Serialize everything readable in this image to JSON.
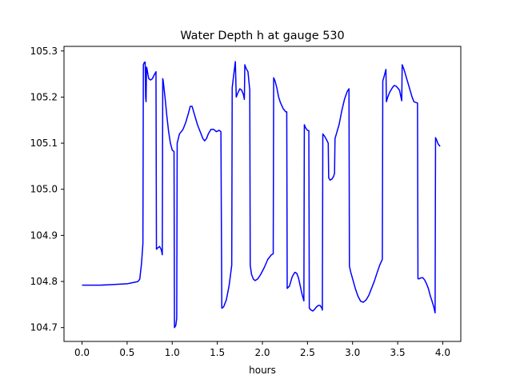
{
  "chart_data": {
    "type": "line",
    "title": "Water Depth h at gauge 530",
    "xlabel": "hours",
    "ylabel": "",
    "xlim": [
      -0.2,
      4.2
    ],
    "ylim": [
      104.67,
      105.31
    ],
    "xticks": [
      0.0,
      0.5,
      1.0,
      1.5,
      2.0,
      2.5,
      3.0,
      3.5,
      4.0
    ],
    "xtick_labels": [
      "0.0",
      "0.5",
      "1.0",
      "1.5",
      "2.0",
      "2.5",
      "3.0",
      "3.5",
      "4.0"
    ],
    "yticks": [
      104.7,
      104.8,
      104.9,
      105.0,
      105.1,
      105.2,
      105.3
    ],
    "ytick_labels": [
      "104.7",
      "104.8",
      "104.9",
      "105.0",
      "105.1",
      "105.2",
      "105.3"
    ],
    "grid": false,
    "legend": "none",
    "series": [
      {
        "color": "#0000ff",
        "points": [
          [
            0.0,
            104.792
          ],
          [
            0.1,
            104.792
          ],
          [
            0.2,
            104.792
          ],
          [
            0.3,
            104.793
          ],
          [
            0.4,
            104.794
          ],
          [
            0.5,
            104.795
          ],
          [
            0.55,
            104.797
          ],
          [
            0.6,
            104.799
          ],
          [
            0.62,
            104.8
          ],
          [
            0.64,
            104.805
          ],
          [
            0.66,
            104.84
          ],
          [
            0.675,
            104.882
          ],
          [
            0.68,
            105.27
          ],
          [
            0.69,
            105.275
          ],
          [
            0.7,
            105.276
          ],
          [
            0.705,
            105.2
          ],
          [
            0.71,
            105.19
          ],
          [
            0.715,
            105.265
          ],
          [
            0.72,
            105.262
          ],
          [
            0.73,
            105.25
          ],
          [
            0.74,
            105.24
          ],
          [
            0.76,
            105.237
          ],
          [
            0.78,
            105.24
          ],
          [
            0.8,
            105.248
          ],
          [
            0.82,
            105.255
          ],
          [
            0.825,
            104.87
          ],
          [
            0.84,
            104.873
          ],
          [
            0.86,
            104.876
          ],
          [
            0.88,
            104.868
          ],
          [
            0.89,
            104.858
          ],
          [
            0.895,
            105.24
          ],
          [
            0.9,
            105.235
          ],
          [
            0.92,
            105.2
          ],
          [
            0.94,
            105.16
          ],
          [
            0.96,
            105.125
          ],
          [
            0.98,
            105.1
          ],
          [
            1.0,
            105.085
          ],
          [
            1.02,
            105.082
          ],
          [
            1.025,
            104.7
          ],
          [
            1.04,
            104.705
          ],
          [
            1.05,
            104.72
          ],
          [
            1.055,
            105.1
          ],
          [
            1.08,
            105.12
          ],
          [
            1.1,
            105.125
          ],
          [
            1.12,
            105.13
          ],
          [
            1.15,
            105.145
          ],
          [
            1.18,
            105.165
          ],
          [
            1.2,
            105.18
          ],
          [
            1.22,
            105.18
          ],
          [
            1.25,
            105.16
          ],
          [
            1.28,
            105.14
          ],
          [
            1.31,
            105.125
          ],
          [
            1.34,
            105.11
          ],
          [
            1.36,
            105.105
          ],
          [
            1.38,
            105.11
          ],
          [
            1.4,
            105.12
          ],
          [
            1.43,
            105.13
          ],
          [
            1.46,
            105.13
          ],
          [
            1.49,
            105.125
          ],
          [
            1.52,
            105.128
          ],
          [
            1.54,
            105.125
          ],
          [
            1.55,
            104.742
          ],
          [
            1.57,
            104.745
          ],
          [
            1.6,
            104.76
          ],
          [
            1.63,
            104.79
          ],
          [
            1.66,
            104.835
          ],
          [
            1.665,
            105.22
          ],
          [
            1.68,
            105.245
          ],
          [
            1.7,
            105.277
          ],
          [
            1.71,
            105.2
          ],
          [
            1.73,
            105.21
          ],
          [
            1.75,
            105.218
          ],
          [
            1.77,
            105.215
          ],
          [
            1.79,
            105.205
          ],
          [
            1.8,
            105.195
          ],
          [
            1.805,
            105.27
          ],
          [
            1.82,
            105.262
          ],
          [
            1.84,
            105.255
          ],
          [
            1.86,
            105.215
          ],
          [
            1.865,
            104.835
          ],
          [
            1.88,
            104.815
          ],
          [
            1.9,
            104.805
          ],
          [
            1.92,
            104.802
          ],
          [
            1.95,
            104.806
          ],
          [
            1.98,
            104.815
          ],
          [
            2.02,
            104.83
          ],
          [
            2.06,
            104.848
          ],
          [
            2.1,
            104.858
          ],
          [
            2.12,
            104.86
          ],
          [
            2.125,
            105.242
          ],
          [
            2.14,
            105.235
          ],
          [
            2.16,
            105.22
          ],
          [
            2.18,
            105.2
          ],
          [
            2.2,
            105.188
          ],
          [
            2.23,
            105.175
          ],
          [
            2.26,
            105.168
          ],
          [
            2.27,
            105.168
          ],
          [
            2.275,
            104.785
          ],
          [
            2.3,
            104.79
          ],
          [
            2.33,
            104.81
          ],
          [
            2.36,
            104.82
          ],
          [
            2.38,
            104.818
          ],
          [
            2.4,
            104.808
          ],
          [
            2.42,
            104.79
          ],
          [
            2.44,
            104.772
          ],
          [
            2.46,
            104.758
          ],
          [
            2.465,
            105.14
          ],
          [
            2.48,
            105.133
          ],
          [
            2.5,
            105.128
          ],
          [
            2.515,
            105.127
          ],
          [
            2.52,
            104.742
          ],
          [
            2.54,
            104.738
          ],
          [
            2.56,
            104.736
          ],
          [
            2.58,
            104.74
          ],
          [
            2.6,
            104.745
          ],
          [
            2.62,
            104.748
          ],
          [
            2.64,
            104.748
          ],
          [
            2.66,
            104.742
          ],
          [
            2.665,
            104.738
          ],
          [
            2.67,
            105.12
          ],
          [
            2.69,
            105.115
          ],
          [
            2.71,
            105.108
          ],
          [
            2.73,
            105.1
          ],
          [
            2.735,
            105.025
          ],
          [
            2.75,
            105.02
          ],
          [
            2.77,
            105.022
          ],
          [
            2.79,
            105.028
          ],
          [
            2.8,
            105.035
          ],
          [
            2.805,
            105.11
          ],
          [
            2.82,
            105.12
          ],
          [
            2.85,
            105.14
          ],
          [
            2.88,
            105.17
          ],
          [
            2.91,
            105.195
          ],
          [
            2.94,
            105.212
          ],
          [
            2.96,
            105.218
          ],
          [
            2.965,
            104.833
          ],
          [
            2.98,
            104.82
          ],
          [
            3.0,
            104.806
          ],
          [
            3.03,
            104.785
          ],
          [
            3.06,
            104.768
          ],
          [
            3.09,
            104.757
          ],
          [
            3.12,
            104.755
          ],
          [
            3.15,
            104.76
          ],
          [
            3.18,
            104.77
          ],
          [
            3.21,
            104.785
          ],
          [
            3.24,
            104.8
          ],
          [
            3.27,
            104.818
          ],
          [
            3.3,
            104.835
          ],
          [
            3.33,
            104.848
          ],
          [
            3.335,
            105.235
          ],
          [
            3.35,
            105.245
          ],
          [
            3.37,
            105.26
          ],
          [
            3.375,
            105.19
          ],
          [
            3.39,
            105.2
          ],
          [
            3.41,
            105.21
          ],
          [
            3.44,
            105.22
          ],
          [
            3.46,
            105.225
          ],
          [
            3.48,
            105.224
          ],
          [
            3.5,
            105.22
          ],
          [
            3.52,
            105.215
          ],
          [
            3.545,
            105.192
          ],
          [
            3.55,
            105.27
          ],
          [
            3.57,
            105.26
          ],
          [
            3.6,
            105.24
          ],
          [
            3.63,
            105.22
          ],
          [
            3.66,
            105.2
          ],
          [
            3.68,
            105.19
          ],
          [
            3.72,
            105.187
          ],
          [
            3.725,
            104.806
          ],
          [
            3.74,
            104.806
          ],
          [
            3.76,
            104.808
          ],
          [
            3.78,
            104.808
          ],
          [
            3.8,
            104.803
          ],
          [
            3.82,
            104.795
          ],
          [
            3.84,
            104.785
          ],
          [
            3.86,
            104.77
          ],
          [
            3.88,
            104.758
          ],
          [
            3.9,
            104.745
          ],
          [
            3.915,
            104.732
          ],
          [
            3.92,
            105.112
          ],
          [
            3.93,
            105.108
          ],
          [
            3.95,
            105.098
          ],
          [
            3.97,
            105.093
          ]
        ]
      }
    ]
  }
}
